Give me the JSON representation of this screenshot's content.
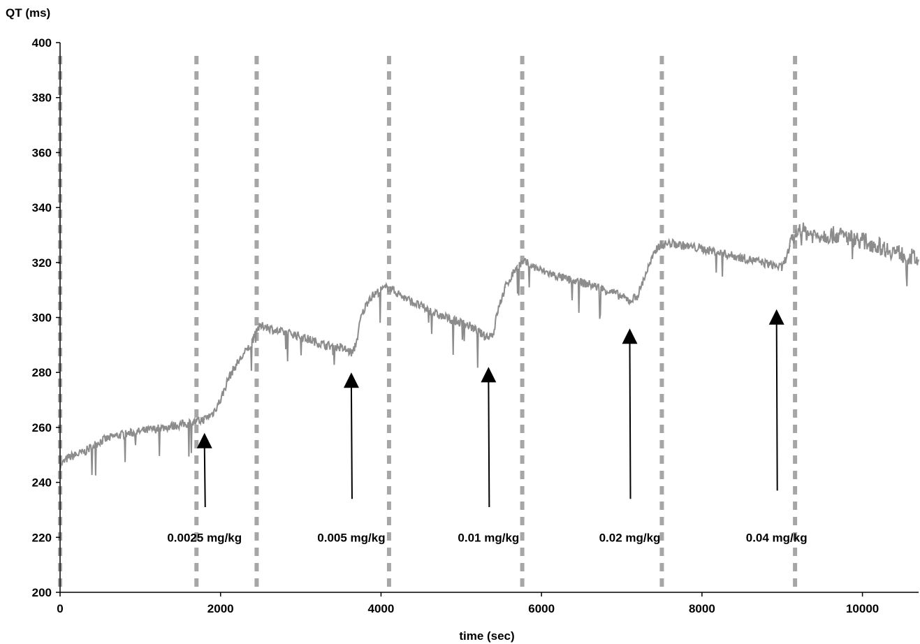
{
  "chart_data": {
    "type": "line",
    "xlabel": "time (sec)",
    "ylabel": "QT (ms)",
    "xlim": [
      0,
      10700
    ],
    "ylim": [
      200,
      400
    ],
    "x_ticks": [
      0,
      2000,
      4000,
      6000,
      8000,
      10000
    ],
    "y_ticks": [
      200,
      220,
      240,
      260,
      280,
      300,
      320,
      340,
      360,
      380,
      400
    ],
    "grid": false,
    "dashed_markers_x": [
      0,
      1700,
      2450,
      4100,
      5760,
      7500,
      9160
    ],
    "series": [
      {
        "color": "#8c8c8c",
        "points": [
          [
            0,
            246
          ],
          [
            100,
            249
          ],
          [
            300,
            251
          ],
          [
            500,
            255
          ],
          [
            700,
            257
          ],
          [
            900,
            258
          ],
          [
            1100,
            259
          ],
          [
            1300,
            260
          ],
          [
            1500,
            261
          ],
          [
            1700,
            262
          ],
          [
            1800,
            263
          ],
          [
            1900,
            265
          ],
          [
            2000,
            270
          ],
          [
            2100,
            278
          ],
          [
            2200,
            283
          ],
          [
            2300,
            287
          ],
          [
            2400,
            291
          ],
          [
            2450,
            296
          ],
          [
            2550,
            297
          ],
          [
            2700,
            295
          ],
          [
            2900,
            294
          ],
          [
            3100,
            292
          ],
          [
            3300,
            290
          ],
          [
            3500,
            289
          ],
          [
            3650,
            287
          ],
          [
            3700,
            292
          ],
          [
            3750,
            300
          ],
          [
            3850,
            307
          ],
          [
            4000,
            310
          ],
          [
            4100,
            311
          ],
          [
            4300,
            307
          ],
          [
            4500,
            304
          ],
          [
            4700,
            301
          ],
          [
            4900,
            299
          ],
          [
            5100,
            297
          ],
          [
            5300,
            293
          ],
          [
            5400,
            294
          ],
          [
            5450,
            302
          ],
          [
            5550,
            311
          ],
          [
            5700,
            319
          ],
          [
            5800,
            320
          ],
          [
            6000,
            317
          ],
          [
            6300,
            314
          ],
          [
            6600,
            312
          ],
          [
            6900,
            309
          ],
          [
            7100,
            306
          ],
          [
            7200,
            308
          ],
          [
            7300,
            316
          ],
          [
            7450,
            326
          ],
          [
            7600,
            327
          ],
          [
            8000,
            325
          ],
          [
            8300,
            323
          ],
          [
            8600,
            321
          ],
          [
            8900,
            319
          ],
          [
            9000,
            318
          ],
          [
            9100,
            326
          ],
          [
            9200,
            332
          ],
          [
            9400,
            330
          ],
          [
            9700,
            330
          ],
          [
            10000,
            328
          ],
          [
            10300,
            325
          ],
          [
            10500,
            323
          ],
          [
            10700,
            321
          ]
        ]
      }
    ],
    "annotations": [
      {
        "text": "0.0025 mg/kg",
        "x": 1800,
        "y": 258,
        "tail_y": 231,
        "label_y": 220
      },
      {
        "text": "0.005 mg/kg",
        "x": 3630,
        "y": 280,
        "tail_y": 234,
        "label_y": 220
      },
      {
        "text": "0.01 mg/kg",
        "x": 5340,
        "y": 282,
        "tail_y": 231,
        "label_y": 220
      },
      {
        "text": "0.02 mg/kg",
        "x": 7100,
        "y": 296,
        "tail_y": 234,
        "label_y": 220
      },
      {
        "text": "0.04 mg/kg",
        "x": 8930,
        "y": 303,
        "tail_y": 237,
        "label_y": 220
      }
    ]
  }
}
